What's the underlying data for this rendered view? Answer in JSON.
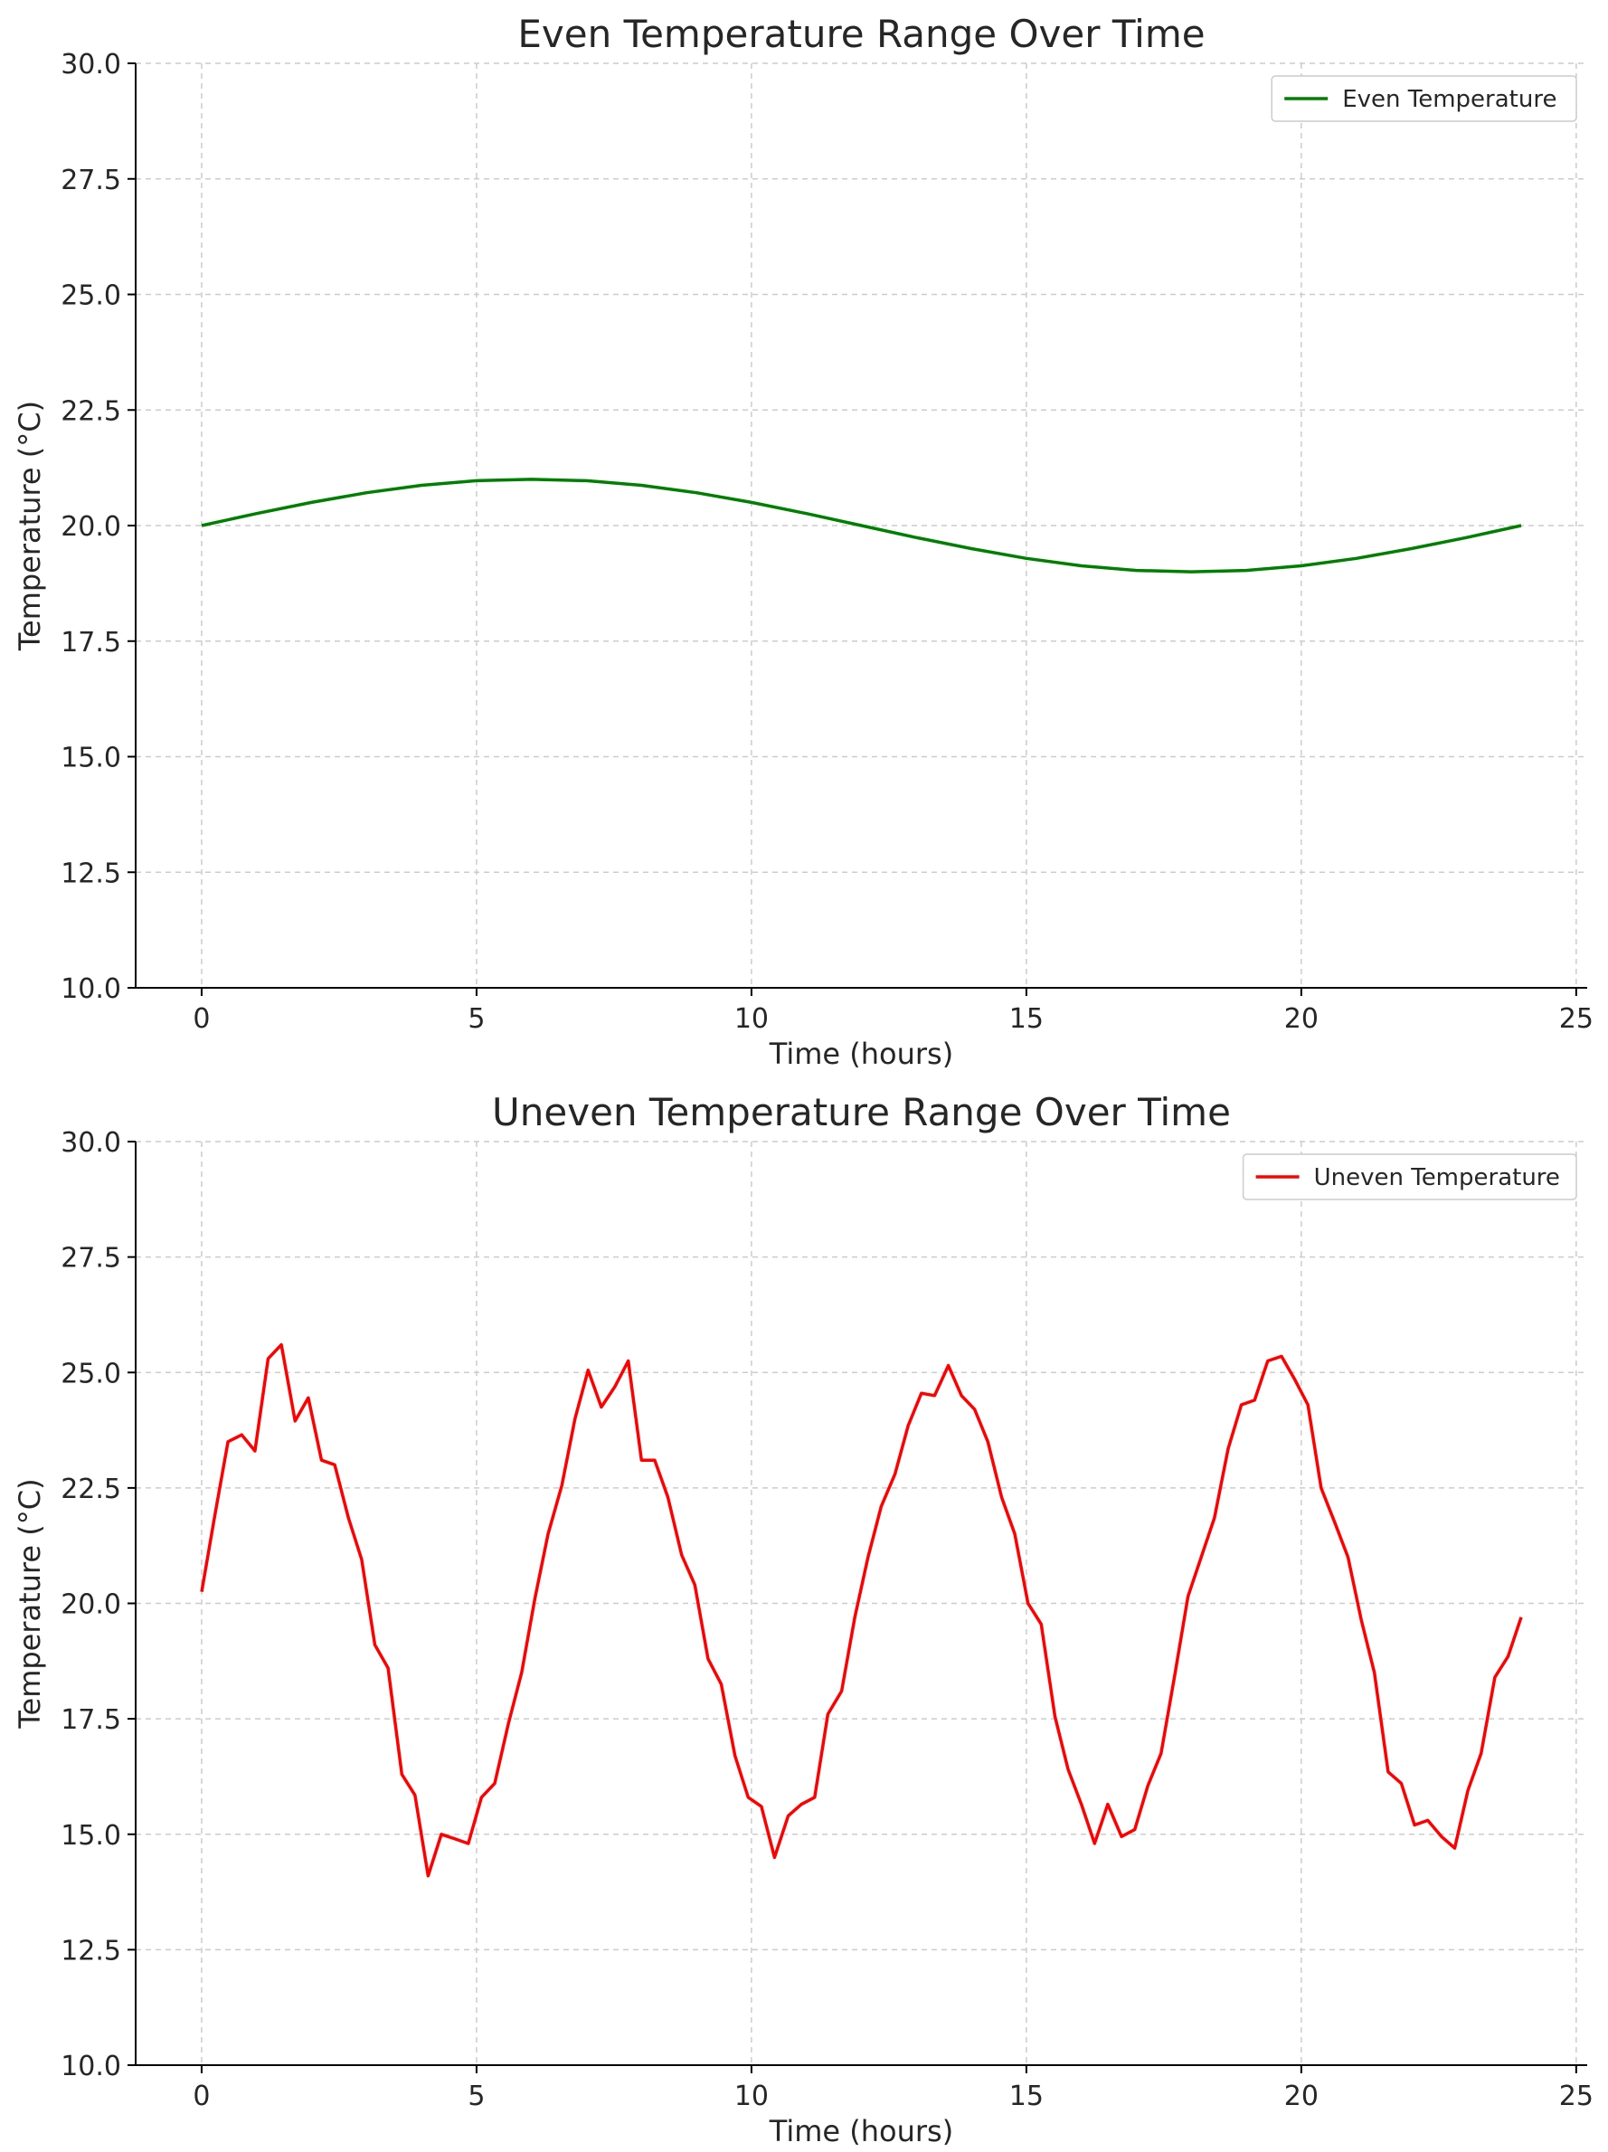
{
  "chart_data": [
    {
      "type": "line",
      "title": "Even Temperature Range Over Time",
      "xlabel": "Time (hours)",
      "ylabel": "Temperature (°C)",
      "xlim": [
        -1.2,
        25.2
      ],
      "ylim": [
        10,
        30
      ],
      "xticks": [
        0,
        5,
        10,
        15,
        20,
        25
      ],
      "xtick_labels": [
        "0",
        "5",
        "10",
        "15",
        "20",
        "25"
      ],
      "yticks": [
        10,
        12.5,
        15,
        17.5,
        20,
        22.5,
        25,
        27.5,
        30
      ],
      "ytick_labels": [
        "10.0",
        "12.5",
        "15.0",
        "17.5",
        "20.0",
        "22.5",
        "25.0",
        "27.5",
        "30.0"
      ],
      "grid": true,
      "legend_position": "top-right",
      "series": [
        {
          "name": "Even Temperature",
          "color": "#008000",
          "x": [
            0,
            1,
            2,
            3,
            4,
            5,
            6,
            7,
            8,
            9,
            10,
            11,
            12,
            13,
            14,
            15,
            16,
            17,
            18,
            19,
            20,
            21,
            22,
            23,
            24
          ],
          "y": [
            20.0,
            20.26,
            20.5,
            20.71,
            20.87,
            20.97,
            21.0,
            20.97,
            20.87,
            20.71,
            20.5,
            20.26,
            20.0,
            19.74,
            19.5,
            19.29,
            19.13,
            19.03,
            19.0,
            19.03,
            19.13,
            19.29,
            19.5,
            19.74,
            20.0
          ]
        }
      ]
    },
    {
      "type": "line",
      "title": "Uneven Temperature Range Over Time",
      "xlabel": "Time (hours)",
      "ylabel": "Temperature (°C)",
      "xlim": [
        -1.2,
        25.2
      ],
      "ylim": [
        10,
        30
      ],
      "xticks": [
        0,
        5,
        10,
        15,
        20,
        25
      ],
      "xtick_labels": [
        "0",
        "5",
        "10",
        "15",
        "20",
        "25"
      ],
      "yticks": [
        10,
        12.5,
        15,
        17.5,
        20,
        22.5,
        25,
        27.5,
        30
      ],
      "ytick_labels": [
        "10.0",
        "12.5",
        "15.0",
        "17.5",
        "20.0",
        "22.5",
        "25.0",
        "27.5",
        "30.0"
      ],
      "grid": true,
      "legend_position": "top-right",
      "series": [
        {
          "name": "Uneven Temperature",
          "color": "#ff0000",
          "x": [
            0.0,
            0.24,
            0.48,
            0.73,
            0.97,
            1.21,
            1.45,
            1.7,
            1.94,
            2.18,
            2.42,
            2.67,
            2.91,
            3.15,
            3.39,
            3.64,
            3.88,
            4.12,
            4.36,
            4.61,
            4.85,
            5.09,
            5.33,
            5.58,
            5.82,
            6.06,
            6.3,
            6.55,
            6.79,
            7.03,
            7.27,
            7.52,
            7.76,
            8.0,
            8.24,
            8.48,
            8.73,
            8.97,
            9.21,
            9.45,
            9.7,
            9.94,
            10.18,
            10.42,
            10.67,
            10.91,
            11.15,
            11.39,
            11.64,
            11.88,
            12.12,
            12.36,
            12.61,
            12.85,
            13.09,
            13.33,
            13.58,
            13.82,
            14.06,
            14.3,
            14.55,
            14.79,
            15.03,
            15.27,
            15.52,
            15.76,
            16.0,
            16.24,
            16.48,
            16.73,
            16.97,
            17.21,
            17.45,
            17.7,
            17.94,
            18.18,
            18.42,
            18.67,
            18.91,
            19.15,
            19.39,
            19.64,
            19.88,
            20.12,
            20.36,
            20.61,
            20.85,
            21.09,
            21.33,
            21.58,
            21.82,
            22.06,
            22.3,
            22.55,
            22.79,
            23.03,
            23.27,
            23.52,
            23.76,
            24.0
          ],
          "y": [
            20.25,
            21.9,
            23.5,
            23.65,
            23.3,
            25.3,
            25.6,
            23.95,
            24.45,
            23.1,
            23.0,
            21.85,
            20.95,
            19.1,
            18.6,
            16.3,
            15.85,
            14.1,
            15.0,
            14.9,
            14.8,
            15.8,
            16.1,
            17.4,
            18.5,
            20.1,
            21.5,
            22.55,
            24.0,
            25.05,
            24.25,
            24.7,
            25.25,
            23.1,
            23.1,
            22.3,
            21.05,
            20.4,
            18.8,
            18.25,
            16.7,
            15.8,
            15.6,
            14.5,
            15.4,
            15.65,
            15.8,
            17.6,
            18.1,
            19.7,
            21.0,
            22.1,
            22.8,
            23.85,
            24.55,
            24.5,
            25.15,
            24.5,
            24.2,
            23.5,
            22.3,
            21.5,
            20.0,
            19.55,
            17.55,
            16.4,
            15.65,
            14.8,
            15.65,
            14.95,
            15.1,
            16.05,
            16.75,
            18.45,
            20.15,
            21.0,
            21.85,
            23.35,
            24.3,
            24.4,
            25.25,
            25.35,
            24.85,
            24.3,
            22.5,
            21.75,
            21.0,
            19.65,
            18.5,
            16.35,
            16.1,
            15.2,
            15.3,
            14.95,
            14.7,
            15.95,
            16.75,
            18.4,
            18.85,
            19.7
          ]
        }
      ]
    }
  ]
}
